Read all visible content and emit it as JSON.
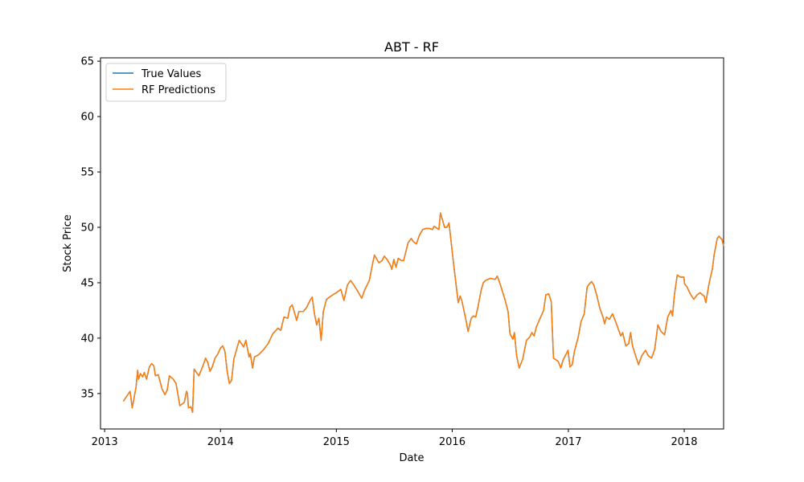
{
  "chart_data": {
    "type": "line",
    "title": "ABT - RF",
    "xlabel": "Date",
    "ylabel": "Stock Price",
    "xlim": [
      "2012-12-19",
      "2018-05-05"
    ],
    "ylim": [
      31.8,
      65.3
    ],
    "xticks": [
      {
        "label": "2013",
        "date": "2013-01-01"
      },
      {
        "label": "2014",
        "date": "2014-01-01"
      },
      {
        "label": "2015",
        "date": "2015-01-01"
      },
      {
        "label": "2016",
        "date": "2016-01-01"
      },
      {
        "label": "2017",
        "date": "2017-01-01"
      },
      {
        "label": "2018",
        "date": "2018-01-01"
      }
    ],
    "yticks": [
      35,
      40,
      45,
      50,
      55,
      60,
      65
    ],
    "grid": false,
    "legend_position": "top-left",
    "series": [
      {
        "name": "True Values",
        "color": "#1f77b4",
        "points": [
          [
            "2013-03-01",
            34.3
          ],
          [
            "2013-03-15",
            34.9
          ],
          [
            "2013-03-22",
            35.2
          ],
          [
            "2013-03-29",
            33.7
          ],
          [
            "2013-04-10",
            35.6
          ],
          [
            "2013-04-15",
            37.1
          ],
          [
            "2013-04-18",
            36.3
          ],
          [
            "2013-04-24",
            36.8
          ],
          [
            "2013-05-01",
            36.5
          ],
          [
            "2013-05-06",
            36.9
          ],
          [
            "2013-05-13",
            36.3
          ],
          [
            "2013-05-22",
            37.4
          ],
          [
            "2013-05-29",
            37.7
          ],
          [
            "2013-06-05",
            37.5
          ],
          [
            "2013-06-10",
            36.6
          ],
          [
            "2013-06-19",
            36.7
          ],
          [
            "2013-07-01",
            35.4
          ],
          [
            "2013-07-10",
            34.9
          ],
          [
            "2013-07-17",
            35.3
          ],
          [
            "2013-07-24",
            36.6
          ],
          [
            "2013-08-05",
            36.3
          ],
          [
            "2013-08-14",
            35.9
          ],
          [
            "2013-08-26",
            33.9
          ],
          [
            "2013-09-09",
            34.2
          ],
          [
            "2013-09-16",
            35.2
          ],
          [
            "2013-09-19",
            35.0
          ],
          [
            "2013-09-22",
            33.7
          ],
          [
            "2013-09-30",
            33.8
          ],
          [
            "2013-10-05",
            33.3
          ],
          [
            "2013-10-10",
            37.2
          ],
          [
            "2013-10-15",
            37.0
          ],
          [
            "2013-10-25",
            36.6
          ],
          [
            "2013-11-08",
            37.6
          ],
          [
            "2013-11-15",
            38.2
          ],
          [
            "2013-11-22",
            37.8
          ],
          [
            "2013-11-29",
            37.0
          ],
          [
            "2013-12-06",
            37.4
          ],
          [
            "2013-12-15",
            38.2
          ],
          [
            "2013-12-24",
            38.6
          ],
          [
            "2014-01-01",
            39.1
          ],
          [
            "2014-01-08",
            39.3
          ],
          [
            "2014-01-15",
            38.8
          ],
          [
            "2014-01-22",
            37.0
          ],
          [
            "2014-01-29",
            35.9
          ],
          [
            "2014-02-05",
            36.2
          ],
          [
            "2014-02-12",
            38.1
          ],
          [
            "2014-02-19",
            38.8
          ],
          [
            "2014-03-01",
            39.8
          ],
          [
            "2014-03-08",
            39.5
          ],
          [
            "2014-03-15",
            39.2
          ],
          [
            "2014-03-22",
            39.8
          ],
          [
            "2014-04-01",
            38.3
          ],
          [
            "2014-04-05",
            38.6
          ],
          [
            "2014-04-12",
            37.3
          ],
          [
            "2014-04-18",
            38.3
          ],
          [
            "2014-05-01",
            38.5
          ],
          [
            "2014-05-15",
            38.9
          ],
          [
            "2014-05-31",
            39.5
          ],
          [
            "2014-06-15",
            40.4
          ],
          [
            "2014-07-01",
            40.9
          ],
          [
            "2014-07-10",
            40.7
          ],
          [
            "2014-07-20",
            41.9
          ],
          [
            "2014-08-01",
            41.8
          ],
          [
            "2014-08-08",
            42.8
          ],
          [
            "2014-08-15",
            43.0
          ],
          [
            "2014-08-22",
            42.3
          ],
          [
            "2014-08-29",
            41.6
          ],
          [
            "2014-09-05",
            42.4
          ],
          [
            "2014-09-19",
            42.4
          ],
          [
            "2014-09-30",
            42.8
          ],
          [
            "2014-10-10",
            43.4
          ],
          [
            "2014-10-17",
            43.7
          ],
          [
            "2014-10-24",
            42.2
          ],
          [
            "2014-10-31",
            41.2
          ],
          [
            "2014-11-07",
            41.8
          ],
          [
            "2014-11-14",
            39.8
          ],
          [
            "2014-11-21",
            42.4
          ],
          [
            "2014-12-01",
            43.5
          ],
          [
            "2014-12-15",
            43.8
          ],
          [
            "2015-01-01",
            44.1
          ],
          [
            "2015-01-15",
            44.4
          ],
          [
            "2015-01-25",
            43.4
          ],
          [
            "2015-02-05",
            44.8
          ],
          [
            "2015-02-15",
            45.2
          ],
          [
            "2015-02-25",
            44.8
          ],
          [
            "2015-03-08",
            44.3
          ],
          [
            "2015-03-22",
            43.6
          ],
          [
            "2015-04-01",
            44.4
          ],
          [
            "2015-04-15",
            45.2
          ],
          [
            "2015-04-25",
            46.7
          ],
          [
            "2015-05-01",
            47.5
          ],
          [
            "2015-05-15",
            46.8
          ],
          [
            "2015-05-25",
            47.0
          ],
          [
            "2015-06-01",
            47.4
          ],
          [
            "2015-06-10",
            47.1
          ],
          [
            "2015-06-20",
            46.6
          ],
          [
            "2015-06-25",
            46.2
          ],
          [
            "2015-07-01",
            47.1
          ],
          [
            "2015-07-08",
            46.4
          ],
          [
            "2015-07-15",
            47.2
          ],
          [
            "2015-07-25",
            47.0
          ],
          [
            "2015-08-01",
            47.0
          ],
          [
            "2015-08-15",
            48.6
          ],
          [
            "2015-08-25",
            49.0
          ],
          [
            "2015-09-01",
            48.7
          ],
          [
            "2015-09-10",
            48.5
          ],
          [
            "2015-09-20",
            49.3
          ],
          [
            "2015-09-30",
            49.8
          ],
          [
            "2015-10-10",
            49.9
          ],
          [
            "2015-10-20",
            49.9
          ],
          [
            "2015-10-31",
            49.8
          ],
          [
            "2015-11-05",
            50.1
          ],
          [
            "2015-11-20",
            49.8
          ],
          [
            "2015-11-25",
            51.3
          ],
          [
            "2015-12-01",
            50.7
          ],
          [
            "2015-12-08",
            50.0
          ],
          [
            "2015-12-15",
            50.0
          ],
          [
            "2015-12-22",
            50.4
          ],
          [
            "2015-12-29",
            48.6
          ],
          [
            "2016-01-05",
            46.8
          ],
          [
            "2016-01-20",
            43.2
          ],
          [
            "2016-01-26",
            43.8
          ],
          [
            "2016-02-01",
            43.3
          ],
          [
            "2016-02-15",
            41.4
          ],
          [
            "2016-02-20",
            40.6
          ],
          [
            "2016-03-01",
            41.8
          ],
          [
            "2016-03-08",
            42.0
          ],
          [
            "2016-03-15",
            41.9
          ],
          [
            "2016-03-22",
            42.8
          ],
          [
            "2016-04-01",
            44.3
          ],
          [
            "2016-04-08",
            45.0
          ],
          [
            "2016-04-15",
            45.2
          ],
          [
            "2016-04-30",
            45.4
          ],
          [
            "2016-05-15",
            45.3
          ],
          [
            "2016-05-22",
            45.6
          ],
          [
            "2016-06-01",
            44.8
          ],
          [
            "2016-06-15",
            43.5
          ],
          [
            "2016-06-25",
            42.4
          ],
          [
            "2016-07-01",
            40.4
          ],
          [
            "2016-07-10",
            39.9
          ],
          [
            "2016-07-15",
            40.5
          ],
          [
            "2016-07-22",
            38.4
          ],
          [
            "2016-07-30",
            37.3
          ],
          [
            "2016-08-10",
            38.1
          ],
          [
            "2016-08-22",
            39.8
          ],
          [
            "2016-09-01",
            40.1
          ],
          [
            "2016-09-08",
            40.5
          ],
          [
            "2016-09-15",
            40.2
          ],
          [
            "2016-09-22",
            41.0
          ],
          [
            "2016-10-01",
            41.6
          ],
          [
            "2016-10-15",
            42.5
          ],
          [
            "2016-10-22",
            43.9
          ],
          [
            "2016-10-31",
            44.0
          ],
          [
            "2016-11-08",
            43.3
          ],
          [
            "2016-11-15",
            38.2
          ],
          [
            "2016-11-30",
            37.9
          ],
          [
            "2016-12-08",
            37.3
          ],
          [
            "2016-12-15",
            38.0
          ],
          [
            "2016-12-22",
            38.4
          ],
          [
            "2016-12-31",
            38.9
          ],
          [
            "2017-01-06",
            37.4
          ],
          [
            "2017-01-13",
            37.6
          ],
          [
            "2017-01-20",
            38.8
          ],
          [
            "2017-02-01",
            40.1
          ],
          [
            "2017-02-10",
            41.5
          ],
          [
            "2017-02-20",
            42.2
          ],
          [
            "2017-03-01",
            44.6
          ],
          [
            "2017-03-08",
            44.9
          ],
          [
            "2017-03-15",
            45.1
          ],
          [
            "2017-03-22",
            44.8
          ],
          [
            "2017-04-01",
            43.8
          ],
          [
            "2017-04-10",
            42.7
          ],
          [
            "2017-04-20",
            41.9
          ],
          [
            "2017-04-25",
            41.3
          ],
          [
            "2017-05-01",
            41.9
          ],
          [
            "2017-05-10",
            41.7
          ],
          [
            "2017-05-20",
            42.2
          ],
          [
            "2017-05-31",
            41.4
          ],
          [
            "2017-06-10",
            40.6
          ],
          [
            "2017-06-15",
            40.2
          ],
          [
            "2017-06-21",
            40.5
          ],
          [
            "2017-07-01",
            39.3
          ],
          [
            "2017-07-10",
            39.5
          ],
          [
            "2017-07-16",
            40.5
          ],
          [
            "2017-07-22",
            39.3
          ],
          [
            "2017-08-01",
            38.4
          ],
          [
            "2017-08-10",
            37.6
          ],
          [
            "2017-08-20",
            38.4
          ],
          [
            "2017-09-01",
            38.9
          ],
          [
            "2017-09-10",
            38.4
          ],
          [
            "2017-09-20",
            38.2
          ],
          [
            "2017-09-30",
            39.0
          ],
          [
            "2017-10-10",
            41.2
          ],
          [
            "2017-10-20",
            40.6
          ],
          [
            "2017-10-31",
            40.3
          ],
          [
            "2017-11-10",
            41.9
          ],
          [
            "2017-11-20",
            42.5
          ],
          [
            "2017-11-25",
            42.0
          ],
          [
            "2017-12-01",
            43.9
          ],
          [
            "2017-12-10",
            45.7
          ],
          [
            "2017-12-20",
            45.5
          ],
          [
            "2017-12-31",
            45.5
          ],
          [
            "2018-01-02",
            44.9
          ],
          [
            "2018-01-10",
            44.6
          ],
          [
            "2018-01-20",
            44.0
          ],
          [
            "2018-01-31",
            43.5
          ],
          [
            "2018-02-10",
            43.9
          ],
          [
            "2018-02-20",
            44.1
          ],
          [
            "2018-02-28",
            43.9
          ],
          [
            "2018-03-05",
            43.8
          ],
          [
            "2018-03-10",
            43.2
          ],
          [
            "2018-03-20",
            44.9
          ],
          [
            "2018-03-31",
            46.3
          ],
          [
            "2018-04-05",
            47.5
          ],
          [
            "2018-04-15",
            49.0
          ],
          [
            "2018-04-20",
            49.2
          ],
          [
            "2018-04-30",
            48.9
          ],
          [
            "2018-05-05",
            48.3
          ]
        ]
      },
      {
        "name": "RF Predictions",
        "color": "#ff7f0e",
        "points": []
      }
    ]
  },
  "legend": {
    "items": [
      "True Values",
      "RF Predictions"
    ]
  }
}
